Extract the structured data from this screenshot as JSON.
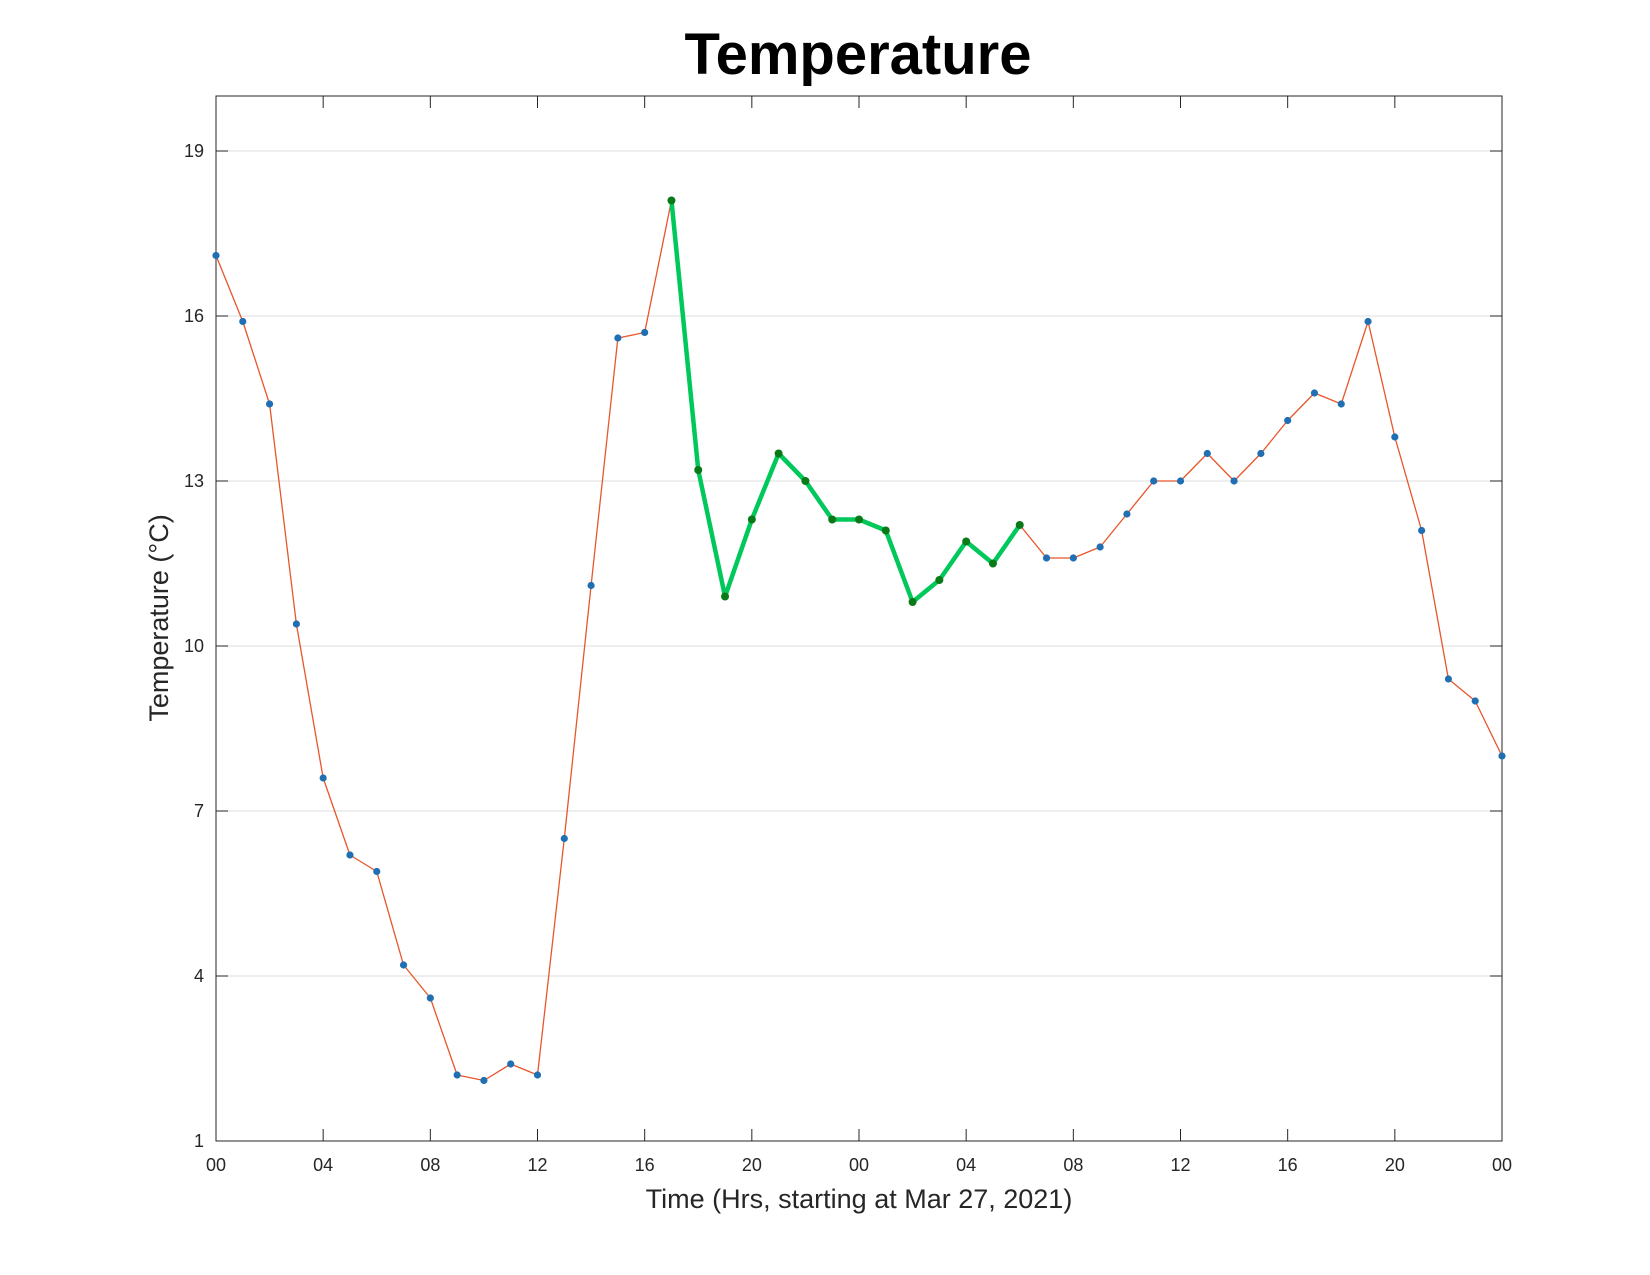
{
  "chart_data": {
    "type": "line",
    "title": "Temperature",
    "xlabel": "Time (Hrs, starting at Mar 27, 2021)",
    "ylabel": "Temperature (°C)",
    "x_unit": "hour",
    "x": [
      0,
      1,
      2,
      3,
      4,
      5,
      6,
      7,
      8,
      9,
      10,
      11,
      12,
      13,
      14,
      15,
      16,
      17,
      18,
      19,
      20,
      21,
      22,
      23,
      24,
      25,
      26,
      27,
      28,
      29,
      30,
      31,
      32,
      33,
      34,
      35,
      36,
      37,
      38,
      39,
      40,
      41,
      42,
      43,
      44,
      45,
      46,
      47,
      48
    ],
    "xticks": [
      0,
      4,
      8,
      12,
      16,
      20,
      24,
      28,
      32,
      36,
      40,
      44,
      48
    ],
    "xtick_labels": [
      "00",
      "04",
      "08",
      "12",
      "16",
      "20",
      "00",
      "04",
      "08",
      "12",
      "16",
      "20",
      "00"
    ],
    "xlim": [
      0,
      48
    ],
    "ylim": [
      1,
      20
    ],
    "yticks": [
      1,
      4,
      7,
      10,
      13,
      16,
      19
    ],
    "ytick_labels": [
      "1",
      "4",
      "7",
      "10",
      "13",
      "16",
      "19"
    ],
    "grid": "horizontal",
    "series": [
      {
        "color": "#e8562a",
        "marker_color": "#1f6fb2",
        "values": [
          17.1,
          15.9,
          14.4,
          10.4,
          7.6,
          6.2,
          5.9,
          4.2,
          3.6,
          2.2,
          2.1,
          2.4,
          2.2,
          6.5,
          11.1,
          15.6,
          15.7,
          18.1,
          13.2,
          10.9,
          12.3,
          13.5,
          13.0,
          12.3,
          12.3,
          12.1,
          10.8,
          11.2,
          11.9,
          11.5,
          12.2,
          11.6,
          11.6,
          11.8,
          12.4,
          13.0,
          13.0,
          13.5,
          13.0,
          13.5,
          14.1,
          14.6,
          14.4,
          15.9,
          13.8,
          12.1,
          9.4,
          9.0,
          8.0
        ]
      },
      {
        "color": "#00c85a",
        "marker_color": "#0a7a18",
        "highlight": true,
        "x": [
          17,
          18,
          19,
          20,
          21,
          22,
          23,
          24,
          25,
          26,
          27,
          28,
          29,
          30
        ],
        "values": [
          18.1,
          13.2,
          10.9,
          12.3,
          13.5,
          13.0,
          12.3,
          12.3,
          12.1,
          10.8,
          11.2,
          11.9,
          11.5,
          12.2
        ]
      }
    ]
  }
}
